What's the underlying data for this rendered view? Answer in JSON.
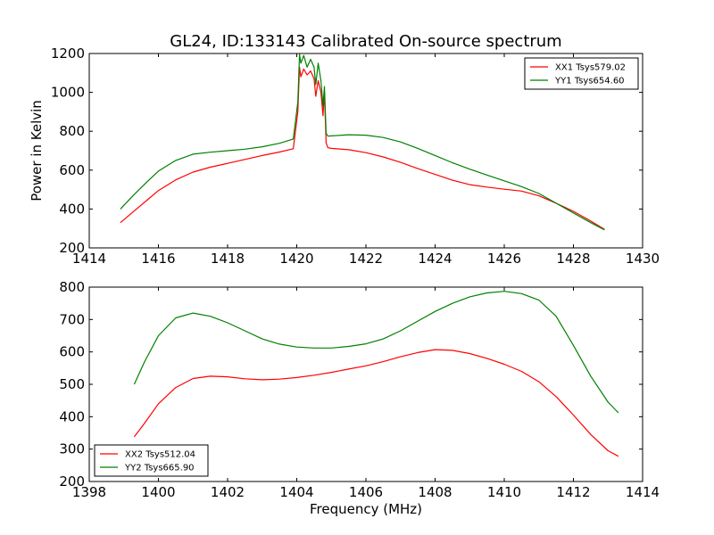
{
  "figure": {
    "title": "GL24, ID:133143 Calibrated On-source spectrum"
  },
  "chart_data": [
    {
      "type": "line",
      "title": "GL24, ID:133143 Calibrated On-source spectrum",
      "xlabel": "",
      "ylabel": "Power in Kelvin",
      "xlim": [
        1414,
        1430
      ],
      "ylim": [
        200,
        1200
      ],
      "xticks": [
        "1414",
        "1416",
        "1418",
        "1420",
        "1422",
        "1424",
        "1426",
        "1428",
        "1430"
      ],
      "yticks": [
        "200",
        "400",
        "600",
        "800",
        "1000",
        "1200"
      ],
      "grid": false,
      "legend_position": "top-right",
      "series": [
        {
          "name": "XX1 Tsys579.02",
          "color": "#ff0000",
          "x": [
            1414.9,
            1415.3,
            1415.7,
            1416.0,
            1416.5,
            1417.0,
            1417.5,
            1418.0,
            1418.5,
            1419.0,
            1419.5,
            1419.9,
            1420.03,
            1420.08,
            1420.12,
            1420.2,
            1420.3,
            1420.4,
            1420.5,
            1420.55,
            1420.62,
            1420.7,
            1420.76,
            1420.8,
            1420.85,
            1420.9,
            1421.0,
            1421.5,
            1422.0,
            1422.5,
            1423.0,
            1423.5,
            1424.0,
            1424.5,
            1425.0,
            1425.5,
            1426.0,
            1426.5,
            1427.0,
            1427.5,
            1428.0,
            1428.5,
            1428.9
          ],
          "y": [
            330,
            390,
            450,
            495,
            550,
            590,
            615,
            635,
            655,
            675,
            693,
            710,
            900,
            1130,
            1080,
            1120,
            1090,
            1110,
            1070,
            980,
            1060,
            1000,
            880,
            1000,
            740,
            715,
            712,
            705,
            690,
            668,
            640,
            608,
            578,
            548,
            525,
            513,
            502,
            492,
            468,
            430,
            388,
            338,
            295
          ]
        },
        {
          "name": "YY1 Tsys654.60",
          "color": "#008000",
          "x": [
            1414.9,
            1415.3,
            1415.7,
            1416.0,
            1416.5,
            1417.0,
            1417.5,
            1418.0,
            1418.5,
            1419.0,
            1419.5,
            1419.9,
            1420.03,
            1420.08,
            1420.12,
            1420.2,
            1420.3,
            1420.4,
            1420.5,
            1420.55,
            1420.62,
            1420.7,
            1420.76,
            1420.8,
            1420.85,
            1420.9,
            1421.0,
            1421.5,
            1422.0,
            1422.5,
            1423.0,
            1423.5,
            1424.0,
            1424.5,
            1425.0,
            1425.5,
            1426.0,
            1426.5,
            1427.0,
            1427.5,
            1428.0,
            1428.5,
            1428.9
          ],
          "y": [
            400,
            475,
            545,
            595,
            650,
            682,
            692,
            700,
            708,
            720,
            738,
            760,
            950,
            1195,
            1150,
            1190,
            1130,
            1170,
            1130,
            1040,
            1150,
            1060,
            930,
            1030,
            790,
            775,
            776,
            782,
            780,
            768,
            745,
            712,
            675,
            638,
            605,
            575,
            545,
            515,
            480,
            430,
            380,
            330,
            292
          ]
        }
      ]
    },
    {
      "type": "line",
      "title": "",
      "xlabel": "Frequency (MHz)",
      "ylabel": "",
      "xlim": [
        1398,
        1414
      ],
      "ylim": [
        200,
        800
      ],
      "xticks": [
        "1398",
        "1400",
        "1402",
        "1404",
        "1406",
        "1408",
        "1410",
        "1412",
        "1414"
      ],
      "yticks": [
        "200",
        "300",
        "400",
        "500",
        "600",
        "700",
        "800"
      ],
      "grid": false,
      "legend_position": "bottom-left",
      "series": [
        {
          "name": "XX2 Tsys512.04",
          "color": "#ff0000",
          "x": [
            1399.3,
            1399.6,
            1400.0,
            1400.5,
            1401.0,
            1401.5,
            1402.0,
            1402.5,
            1403.0,
            1403.5,
            1404.0,
            1404.5,
            1405.0,
            1405.5,
            1406.0,
            1406.5,
            1407.0,
            1407.5,
            1408.0,
            1408.5,
            1409.0,
            1409.5,
            1410.0,
            1410.5,
            1411.0,
            1411.5,
            1412.0,
            1412.5,
            1413.0,
            1413.3
          ],
          "y": [
            338,
            380,
            440,
            490,
            518,
            525,
            523,
            517,
            514,
            516,
            521,
            528,
            537,
            547,
            557,
            570,
            585,
            598,
            607,
            605,
            595,
            580,
            562,
            540,
            508,
            462,
            405,
            345,
            295,
            278
          ]
        },
        {
          "name": "YY2 Tsys665.90",
          "color": "#008000",
          "x": [
            1399.3,
            1399.6,
            1400.0,
            1400.5,
            1401.0,
            1401.5,
            1402.0,
            1402.5,
            1403.0,
            1403.5,
            1404.0,
            1404.5,
            1405.0,
            1405.5,
            1406.0,
            1406.5,
            1407.0,
            1407.5,
            1408.0,
            1408.5,
            1409.0,
            1409.5,
            1410.0,
            1410.5,
            1411.0,
            1411.5,
            1412.0,
            1412.5,
            1413.0,
            1413.3
          ],
          "y": [
            500,
            570,
            650,
            705,
            720,
            710,
            690,
            665,
            640,
            624,
            615,
            612,
            612,
            617,
            625,
            640,
            665,
            695,
            725,
            750,
            770,
            782,
            787,
            780,
            760,
            710,
            620,
            525,
            445,
            412
          ]
        }
      ]
    }
  ]
}
